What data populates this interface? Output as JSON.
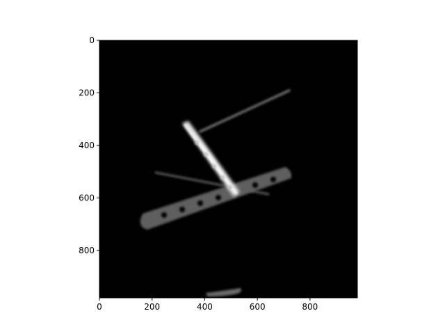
{
  "figure": {
    "image_description": "Grayscale X-ray/CT style image of a bone plate with screw holes, an inserted screw/pin crossing it, a thin wire, and a small fragment near the bottom, on a black background.",
    "colors": {
      "background": "#000000",
      "page": "#ffffff",
      "axis": "#000000",
      "object_bright": "#e8e8e8",
      "object_mid": "#7a7a7a",
      "object_dim": "#555555"
    }
  },
  "chart_data": {
    "type": "heatmap",
    "title": "",
    "xlabel": "",
    "ylabel": "",
    "xlim": [
      0,
      980
    ],
    "ylim": [
      980,
      0
    ],
    "x_ticks": [
      0,
      200,
      400,
      600,
      800
    ],
    "y_ticks": [
      0,
      200,
      400,
      600,
      800
    ],
    "grid": false,
    "colormap": "gray"
  }
}
